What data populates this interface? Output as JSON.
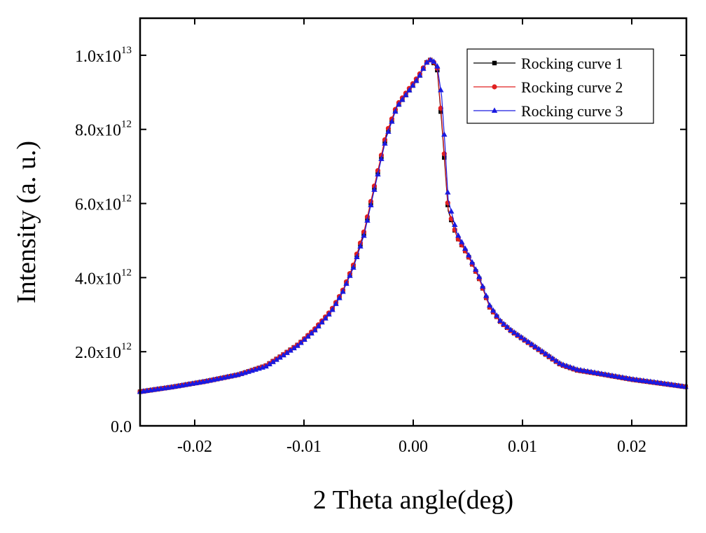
{
  "chart_data": {
    "type": "line",
    "xlabel": "2 Theta angle(deg)",
    "ylabel": "Intensity (a. u.)",
    "xlim": [
      -0.025,
      0.025
    ],
    "ylim": [
      0,
      11000000000000.0
    ],
    "x_ticks": [
      {
        "value": -0.02,
        "label": "-0.02"
      },
      {
        "value": -0.01,
        "label": "-0.01"
      },
      {
        "value": 0.0,
        "label": "0.00"
      },
      {
        "value": 0.01,
        "label": "0.01"
      },
      {
        "value": 0.02,
        "label": "0.02"
      }
    ],
    "y_ticks": [
      {
        "value": 0,
        "mant": "0.0",
        "exp": ""
      },
      {
        "value": 2000000000000.0,
        "mant": "2.0x10",
        "exp": "12"
      },
      {
        "value": 4000000000000.0,
        "mant": "4.0x10",
        "exp": "12"
      },
      {
        "value": 6000000000000.0,
        "mant": "6.0x10",
        "exp": "12"
      },
      {
        "value": 8000000000000.0,
        "mant": "8.0x10",
        "exp": "12"
      },
      {
        "value": 10000000000000.0,
        "mant": "1.0x10",
        "exp": "13"
      }
    ],
    "grid": false,
    "legend_position": "top-right",
    "series": [
      {
        "name": "Rocking curve 1",
        "color": "#000000",
        "marker": "square",
        "x": [
          -0.025,
          -0.022,
          -0.019,
          -0.016,
          -0.0135,
          -0.012,
          -0.0105,
          -0.009,
          -0.0075,
          -0.0065,
          -0.0055,
          -0.0045,
          -0.0035,
          -0.0025,
          -0.0015,
          -0.0005,
          0.0005,
          0.0012,
          0.0017,
          0.0022,
          0.0026,
          0.0029,
          0.0032,
          0.004,
          0.005,
          0.006,
          0.007,
          0.008,
          0.009,
          0.0105,
          0.012,
          0.0135,
          0.015,
          0.0175,
          0.02,
          0.0225,
          0.025
        ],
        "values": [
          920000000000.0,
          1050000000000.0,
          1200000000000.0,
          1380000000000.0,
          1620000000000.0,
          1900000000000.0,
          2200000000000.0,
          2600000000000.0,
          3100000000000.0,
          3600000000000.0,
          4300000000000.0,
          5200000000000.0,
          6500000000000.0,
          7800000000000.0,
          8600000000000.0,
          9000000000000.0,
          9400000000000.0,
          9800000000000.0,
          9900000000000.0,
          9600000000000.0,
          8200000000000.0,
          7000000000000.0,
          5800000000000.0,
          5100000000000.0,
          4600000000000.0,
          4000000000000.0,
          3200000000000.0,
          2800000000000.0,
          2550000000000.0,
          2250000000000.0,
          1950000000000.0,
          1650000000000.0,
          1500000000000.0,
          1380000000000.0,
          1250000000000.0,
          1150000000000.0,
          1050000000000.0
        ]
      },
      {
        "name": "Rocking curve 2",
        "color": "#e02020",
        "marker": "circle",
        "x": [
          -0.025,
          -0.022,
          -0.019,
          -0.016,
          -0.0135,
          -0.012,
          -0.0105,
          -0.009,
          -0.0075,
          -0.0065,
          -0.0055,
          -0.0045,
          -0.0035,
          -0.0025,
          -0.0015,
          -0.0005,
          0.0005,
          0.0012,
          0.0017,
          0.0022,
          0.0026,
          0.0029,
          0.0032,
          0.004,
          0.005,
          0.006,
          0.007,
          0.008,
          0.009,
          0.0105,
          0.012,
          0.0135,
          0.015,
          0.0175,
          0.02,
          0.0225,
          0.025
        ],
        "values": [
          920000000000.0,
          1050000000000.0,
          1200000000000.0,
          1380000000000.0,
          1620000000000.0,
          1900000000000.0,
          2200000000000.0,
          2620000000000.0,
          3120000000000.0,
          3620000000000.0,
          4320000000000.0,
          5250000000000.0,
          6550000000000.0,
          7850000000000.0,
          8650000000000.0,
          9050000000000.0,
          9450000000000.0,
          9800000000000.0,
          9900000000000.0,
          9650000000000.0,
          8300000000000.0,
          7100000000000.0,
          5850000000000.0,
          5100000000000.0,
          4600000000000.0,
          4000000000000.0,
          3200000000000.0,
          2800000000000.0,
          2550000000000.0,
          2250000000000.0,
          1950000000000.0,
          1650000000000.0,
          1500000000000.0,
          1380000000000.0,
          1250000000000.0,
          1150000000000.0,
          1050000000000.0
        ]
      },
      {
        "name": "Rocking curve 3",
        "color": "#1a1ae0",
        "marker": "triangle",
        "x": [
          -0.025,
          -0.022,
          -0.019,
          -0.016,
          -0.0135,
          -0.012,
          -0.0105,
          -0.009,
          -0.0075,
          -0.0065,
          -0.0055,
          -0.0045,
          -0.0035,
          -0.0025,
          -0.0015,
          -0.0005,
          0.0005,
          0.0012,
          0.0017,
          0.0022,
          0.0026,
          0.0029,
          0.0032,
          0.004,
          0.005,
          0.006,
          0.007,
          0.008,
          0.009,
          0.0105,
          0.012,
          0.0135,
          0.015,
          0.0175,
          0.02,
          0.0225,
          0.025
        ],
        "values": [
          920000000000.0,
          1050000000000.0,
          1200000000000.0,
          1380000000000.0,
          1600000000000.0,
          1880000000000.0,
          2180000000000.0,
          2580000000000.0,
          3080000000000.0,
          3580000000000.0,
          4250000000000.0,
          5150000000000.0,
          6450000000000.0,
          7750000000000.0,
          8600000000000.0,
          9000000000000.0,
          9400000000000.0,
          9800000000000.0,
          9900000000000.0,
          9700000000000.0,
          8900000000000.0,
          7600000000000.0,
          6100000000000.0,
          5200000000000.0,
          4650000000000.0,
          4050000000000.0,
          3250000000000.0,
          2820000000000.0,
          2570000000000.0,
          2270000000000.0,
          1970000000000.0,
          1670000000000.0,
          1520000000000.0,
          1390000000000.0,
          1260000000000.0,
          1160000000000.0,
          1050000000000.0
        ]
      }
    ]
  }
}
